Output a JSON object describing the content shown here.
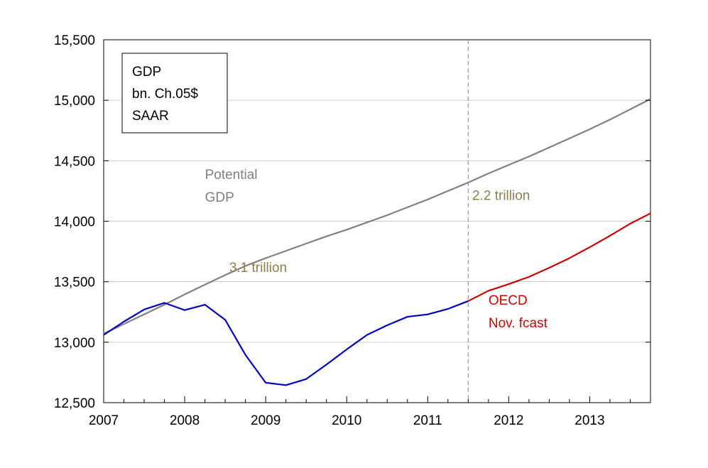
{
  "chart_data": {
    "type": "line",
    "title": "",
    "xlabel": "",
    "ylabel": "",
    "xlim": [
      2007.0,
      2013.75
    ],
    "ylim": [
      12500,
      15500
    ],
    "y_ticks": [
      12500,
      13000,
      13500,
      14000,
      14500,
      15000,
      15500
    ],
    "y_tick_labels": [
      "12,500",
      "13,000",
      "13,500",
      "14,000",
      "14,500",
      "15,000",
      "15,500"
    ],
    "x_tick_labels": [
      "2007",
      "2008",
      "2009",
      "2010",
      "2011",
      "2012",
      "2013"
    ],
    "grid": true,
    "legend_box": {
      "lines": [
        "GDP",
        "bn. Ch.05$",
        "SAAR"
      ],
      "position": "top-left"
    },
    "series": [
      {
        "color": "#808080",
        "x": [
          2007.0,
          2007.25,
          2007.5,
          2007.75,
          2008.0,
          2008.25,
          2008.5,
          2008.75,
          2009.0,
          2009.25,
          2009.5,
          2009.75,
          2010.0,
          2010.25,
          2010.5,
          2010.75,
          2011.0,
          2011.25,
          2011.5,
          2011.75,
          2012.0,
          2012.25,
          2012.5,
          2012.75,
          2013.0,
          2013.25,
          2013.5,
          2013.75
        ],
        "values": [
          13070,
          13150,
          13230,
          13310,
          13395,
          13475,
          13555,
          13630,
          13695,
          13755,
          13815,
          13875,
          13930,
          13990,
          14050,
          14115,
          14180,
          14250,
          14320,
          14395,
          14465,
          14535,
          14610,
          14685,
          14760,
          14840,
          14925,
          15010
        ]
      },
      {
        "color": "#0000c0",
        "x": [
          2007.0,
          2007.25,
          2007.5,
          2007.75,
          2008.0,
          2008.25,
          2008.5,
          2008.75,
          2009.0,
          2009.25,
          2009.5,
          2009.75,
          2010.0,
          2010.25,
          2010.5,
          2010.75,
          2011.0,
          2011.25,
          2011.5
        ],
        "values": [
          13060,
          13170,
          13270,
          13325,
          13265,
          13310,
          13185,
          12895,
          12665,
          12645,
          12695,
          12815,
          12940,
          13060,
          13140,
          13210,
          13230,
          13275,
          13340
        ]
      },
      {
        "color": "#cc0000",
        "x": [
          2011.5,
          2011.75,
          2012.0,
          2012.25,
          2012.5,
          2012.75,
          2013.0,
          2013.25,
          2013.5,
          2013.75
        ],
        "values": [
          13340,
          13425,
          13480,
          13540,
          13615,
          13695,
          13785,
          13880,
          13980,
          14065
        ]
      }
    ],
    "vertical_line": {
      "x": 2011.5,
      "style": "dashed",
      "color": "#999999"
    },
    "annotations": [
      {
        "id": "potential",
        "lines": [
          "Potential",
          "GDP"
        ],
        "color": "#808080",
        "x": 2008.25,
        "y": 14350
      },
      {
        "id": "gap-2011",
        "lines": [
          "2.2 trillion"
        ],
        "color": "#8c8050",
        "x": 2011.55,
        "y": 14175
      },
      {
        "id": "gap-2009",
        "lines": [
          "3.1 trillion"
        ],
        "color": "#8c8050",
        "x": 2008.55,
        "y": 13580
      },
      {
        "id": "oecd",
        "lines": [
          "OECD",
          "Nov. fcast"
        ],
        "color": "#cc0000",
        "x": 2011.75,
        "y": 13310
      }
    ]
  }
}
